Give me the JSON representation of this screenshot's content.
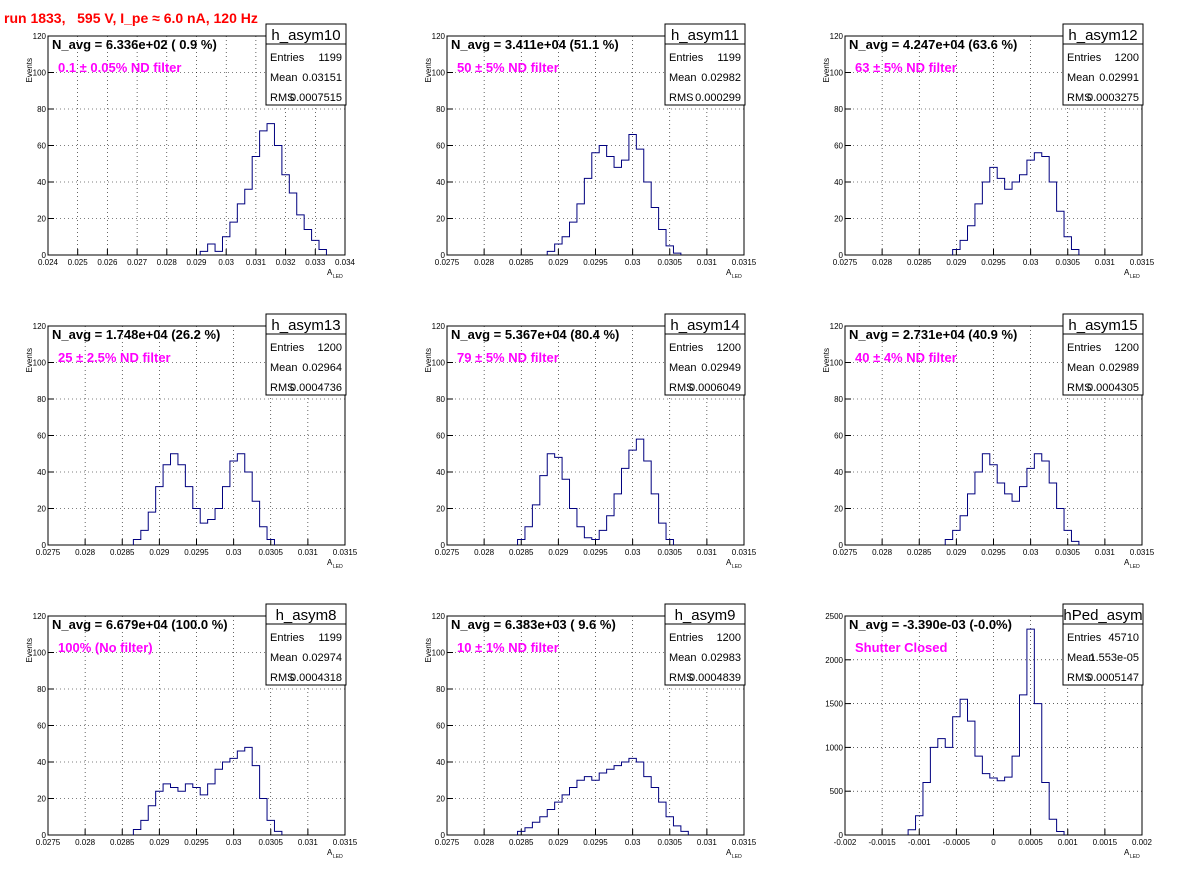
{
  "title": "run 1833,   595 V, I_pe ≈ 6.0 nA, 120 Hz",
  "chart_data": [
    {
      "type": "bar",
      "name": "h_asym10",
      "navg": "N_avg = 6.336e+02 ( 0.9 %)",
      "filter": "0.1 ± 0.05% ND filter",
      "stats": {
        "entries_label": "Entries",
        "entries": "1199",
        "mean_label": "Mean",
        "mean": "0.03151",
        "rms_label": "RMS",
        "rms": "0.0007515"
      },
      "xlabel": "A",
      "xlabel_sub": "LED",
      "ylabel": "Events",
      "xlim": [
        0.024,
        0.034
      ],
      "ylim": [
        0,
        120
      ],
      "xticks": [
        0.024,
        0.025,
        0.026,
        0.027,
        0.028,
        0.029,
        0.03,
        0.031,
        0.032,
        0.033,
        0.034
      ],
      "xtick_labels": [
        "0.024",
        "0.025",
        "0.026",
        "0.027",
        "0.028",
        "0.029",
        "0.03",
        "0.031",
        "0.032",
        "0.033",
        "0.034"
      ],
      "yticks": [
        0,
        20,
        40,
        60,
        80,
        100,
        120
      ],
      "bins": [
        [
          0.02925,
          2
        ],
        [
          0.0295,
          6
        ],
        [
          0.02975,
          2
        ],
        [
          0.03,
          10
        ],
        [
          0.03025,
          18
        ],
        [
          0.0305,
          28
        ],
        [
          0.03075,
          36
        ],
        [
          0.031,
          54
        ],
        [
          0.03125,
          68
        ],
        [
          0.0315,
          72
        ],
        [
          0.03175,
          60
        ],
        [
          0.032,
          44
        ],
        [
          0.03225,
          34
        ],
        [
          0.0325,
          22
        ],
        [
          0.03275,
          14
        ],
        [
          0.033,
          8
        ],
        [
          0.03325,
          3
        ]
      ]
    },
    {
      "type": "bar",
      "name": "h_asym11",
      "navg": "N_avg = 3.411e+04 (51.1 %)",
      "filter": "50 ± 5% ND filter",
      "stats": {
        "entries_label": "Entries",
        "entries": "1199",
        "mean_label": "Mean",
        "mean": "0.02982",
        "rms_label": "RMS",
        "rms": "0.000299"
      },
      "xlabel": "A",
      "xlabel_sub": "LED",
      "ylabel": "Events",
      "xlim": [
        0.0275,
        0.0315
      ],
      "ylim": [
        0,
        120
      ],
      "xticks": [
        0.0275,
        0.028,
        0.0285,
        0.029,
        0.0295,
        0.03,
        0.0305,
        0.031,
        0.0315
      ],
      "xtick_labels": [
        "0.0275",
        "0.028",
        "0.0285",
        "0.029",
        "0.0295",
        "0.03",
        "0.0305",
        "0.031",
        "0.0315"
      ],
      "yticks": [
        0,
        20,
        40,
        60,
        80,
        100,
        120
      ],
      "bins": [
        [
          0.0289,
          2
        ],
        [
          0.029,
          6
        ],
        [
          0.0291,
          10
        ],
        [
          0.0292,
          18
        ],
        [
          0.0293,
          28
        ],
        [
          0.0294,
          42
        ],
        [
          0.0295,
          56
        ],
        [
          0.0296,
          60
        ],
        [
          0.0297,
          54
        ],
        [
          0.0298,
          48
        ],
        [
          0.0299,
          52
        ],
        [
          0.03,
          66
        ],
        [
          0.0301,
          58
        ],
        [
          0.0302,
          40
        ],
        [
          0.0303,
          26
        ],
        [
          0.0304,
          14
        ],
        [
          0.0305,
          5
        ],
        [
          0.0306,
          1
        ]
      ]
    },
    {
      "type": "bar",
      "name": "h_asym12",
      "navg": "N_avg = 4.247e+04 (63.6 %)",
      "filter": "63 ± 5% ND filter",
      "stats": {
        "entries_label": "Entries",
        "entries": "1200",
        "mean_label": "Mean",
        "mean": "0.02991",
        "rms_label": "RMS",
        "rms": "0.0003275"
      },
      "xlabel": "A",
      "xlabel_sub": "LED",
      "ylabel": "Events",
      "xlim": [
        0.0275,
        0.0315
      ],
      "ylim": [
        0,
        120
      ],
      "xticks": [
        0.0275,
        0.028,
        0.0285,
        0.029,
        0.0295,
        0.03,
        0.0305,
        0.031,
        0.0315
      ],
      "xtick_labels": [
        "0.0275",
        "0.028",
        "0.0285",
        "0.029",
        "0.0295",
        "0.03",
        "0.0305",
        "0.031",
        "0.0315"
      ],
      "yticks": [
        0,
        20,
        40,
        60,
        80,
        100,
        120
      ],
      "bins": [
        [
          0.029,
          3
        ],
        [
          0.0291,
          8
        ],
        [
          0.0292,
          16
        ],
        [
          0.0293,
          28
        ],
        [
          0.0294,
          40
        ],
        [
          0.0295,
          48
        ],
        [
          0.0296,
          42
        ],
        [
          0.0297,
          36
        ],
        [
          0.0298,
          40
        ],
        [
          0.0299,
          44
        ],
        [
          0.03,
          52
        ],
        [
          0.0301,
          56
        ],
        [
          0.0302,
          54
        ],
        [
          0.0303,
          40
        ],
        [
          0.0304,
          24
        ],
        [
          0.0305,
          10
        ],
        [
          0.0306,
          3
        ]
      ]
    },
    {
      "type": "bar",
      "name": "h_asym13",
      "navg": "N_avg = 1.748e+04 (26.2 %)",
      "filter": "25 ± 2.5% ND filter",
      "stats": {
        "entries_label": "Entries",
        "entries": "1200",
        "mean_label": "Mean",
        "mean": "0.02964",
        "rms_label": "RMS",
        "rms": "0.0004736"
      },
      "xlabel": "A",
      "xlabel_sub": "LED",
      "ylabel": "Events",
      "xlim": [
        0.0275,
        0.0315
      ],
      "ylim": [
        0,
        120
      ],
      "xticks": [
        0.0275,
        0.028,
        0.0285,
        0.029,
        0.0295,
        0.03,
        0.0305,
        0.031,
        0.0315
      ],
      "xtick_labels": [
        "0.0275",
        "0.028",
        "0.0285",
        "0.029",
        "0.0295",
        "0.03",
        "0.0305",
        "0.031",
        "0.0315"
      ],
      "yticks": [
        0,
        20,
        40,
        60,
        80,
        100,
        120
      ],
      "bins": [
        [
          0.0287,
          3
        ],
        [
          0.0288,
          8
        ],
        [
          0.0289,
          18
        ],
        [
          0.029,
          32
        ],
        [
          0.0291,
          44
        ],
        [
          0.0292,
          50
        ],
        [
          0.0293,
          44
        ],
        [
          0.0294,
          32
        ],
        [
          0.0295,
          20
        ],
        [
          0.0296,
          12
        ],
        [
          0.0297,
          14
        ],
        [
          0.0298,
          20
        ],
        [
          0.0299,
          32
        ],
        [
          0.03,
          46
        ],
        [
          0.0301,
          50
        ],
        [
          0.0302,
          40
        ],
        [
          0.0303,
          24
        ],
        [
          0.0304,
          10
        ],
        [
          0.0305,
          3
        ]
      ]
    },
    {
      "type": "bar",
      "name": "h_asym14",
      "navg": "N_avg = 5.367e+04 (80.4 %)",
      "filter": "79 ± 5% ND filter",
      "stats": {
        "entries_label": "Entries",
        "entries": "1200",
        "mean_label": "Mean",
        "mean": "0.02949",
        "rms_label": "RMS",
        "rms": "0.0006049"
      },
      "xlabel": "A",
      "xlabel_sub": "LED",
      "ylabel": "Events",
      "xlim": [
        0.0275,
        0.0315
      ],
      "ylim": [
        0,
        120
      ],
      "xticks": [
        0.0275,
        0.028,
        0.0285,
        0.029,
        0.0295,
        0.03,
        0.0305,
        0.031,
        0.0315
      ],
      "xtick_labels": [
        "0.0275",
        "0.028",
        "0.0285",
        "0.029",
        "0.0295",
        "0.03",
        "0.0305",
        "0.031",
        "0.0315"
      ],
      "yticks": [
        0,
        20,
        40,
        60,
        80,
        100,
        120
      ],
      "bins": [
        [
          0.0285,
          3
        ],
        [
          0.0286,
          10
        ],
        [
          0.0287,
          22
        ],
        [
          0.0288,
          38
        ],
        [
          0.0289,
          50
        ],
        [
          0.029,
          48
        ],
        [
          0.0291,
          36
        ],
        [
          0.0292,
          20
        ],
        [
          0.0293,
          10
        ],
        [
          0.0294,
          4
        ],
        [
          0.0295,
          3
        ],
        [
          0.0296,
          8
        ],
        [
          0.0297,
          16
        ],
        [
          0.0298,
          28
        ],
        [
          0.0299,
          42
        ],
        [
          0.03,
          52
        ],
        [
          0.0301,
          58
        ],
        [
          0.0302,
          46
        ],
        [
          0.0303,
          28
        ],
        [
          0.0304,
          12
        ],
        [
          0.0305,
          3
        ]
      ]
    },
    {
      "type": "bar",
      "name": "h_asym15",
      "navg": "N_avg = 2.731e+04 (40.9 %)",
      "filter": "40 ± 4% ND filter",
      "stats": {
        "entries_label": "Entries",
        "entries": "1200",
        "mean_label": "Mean",
        "mean": "0.02989",
        "rms_label": "RMS",
        "rms": "0.0004305"
      },
      "xlabel": "A",
      "xlabel_sub": "LED",
      "ylabel": "Events",
      "xlim": [
        0.0275,
        0.0315
      ],
      "ylim": [
        0,
        120
      ],
      "xticks": [
        0.0275,
        0.028,
        0.0285,
        0.029,
        0.0295,
        0.03,
        0.0305,
        0.031,
        0.0315
      ],
      "xtick_labels": [
        "0.0275",
        "0.028",
        "0.0285",
        "0.029",
        "0.0295",
        "0.03",
        "0.0305",
        "0.031",
        "0.0315"
      ],
      "yticks": [
        0,
        20,
        40,
        60,
        80,
        100,
        120
      ],
      "bins": [
        [
          0.0289,
          3
        ],
        [
          0.029,
          8
        ],
        [
          0.0291,
          16
        ],
        [
          0.0292,
          28
        ],
        [
          0.0293,
          40
        ],
        [
          0.0294,
          50
        ],
        [
          0.0295,
          44
        ],
        [
          0.0296,
          34
        ],
        [
          0.0297,
          28
        ],
        [
          0.0298,
          24
        ],
        [
          0.0299,
          32
        ],
        [
          0.03,
          42
        ],
        [
          0.0301,
          50
        ],
        [
          0.0302,
          46
        ],
        [
          0.0303,
          34
        ],
        [
          0.0304,
          20
        ],
        [
          0.0305,
          8
        ],
        [
          0.0306,
          2
        ]
      ]
    },
    {
      "type": "bar",
      "name": "h_asym8",
      "navg": "N_avg = 6.679e+04 (100.0 %)",
      "filter": "100% (No filter)",
      "stats": {
        "entries_label": "Entries",
        "entries": "1199",
        "mean_label": "Mean",
        "mean": "0.02974",
        "rms_label": "RMS",
        "rms": "0.0004318"
      },
      "xlabel": "A",
      "xlabel_sub": "LED",
      "ylabel": "Events",
      "xlim": [
        0.0275,
        0.0315
      ],
      "ylim": [
        0,
        120
      ],
      "xticks": [
        0.0275,
        0.028,
        0.0285,
        0.029,
        0.0295,
        0.03,
        0.0305,
        0.031,
        0.0315
      ],
      "xtick_labels": [
        "0.0275",
        "0.028",
        "0.0285",
        "0.029",
        "0.0295",
        "0.03",
        "0.0305",
        "0.031",
        "0.0315"
      ],
      "yticks": [
        0,
        20,
        40,
        60,
        80,
        100,
        120
      ],
      "bins": [
        [
          0.0287,
          3
        ],
        [
          0.0288,
          8
        ],
        [
          0.0289,
          16
        ],
        [
          0.029,
          24
        ],
        [
          0.0291,
          28
        ],
        [
          0.0292,
          26
        ],
        [
          0.0293,
          24
        ],
        [
          0.0294,
          28
        ],
        [
          0.0295,
          26
        ],
        [
          0.0296,
          22
        ],
        [
          0.0297,
          28
        ],
        [
          0.0298,
          36
        ],
        [
          0.0299,
          40
        ],
        [
          0.03,
          42
        ],
        [
          0.0301,
          46
        ],
        [
          0.0302,
          48
        ],
        [
          0.0303,
          38
        ],
        [
          0.0304,
          20
        ],
        [
          0.0305,
          8
        ],
        [
          0.0306,
          2
        ]
      ]
    },
    {
      "type": "bar",
      "name": "h_asym9",
      "navg": "N_avg = 6.383e+03 ( 9.6 %)",
      "filter": "10 ± 1% ND filter",
      "stats": {
        "entries_label": "Entries",
        "entries": "1200",
        "mean_label": "Mean",
        "mean": "0.02983",
        "rms_label": "RMS",
        "rms": "0.0004839"
      },
      "xlabel": "A",
      "xlabel_sub": "LED",
      "ylabel": "Events",
      "xlim": [
        0.0275,
        0.0315
      ],
      "ylim": [
        0,
        120
      ],
      "xticks": [
        0.0275,
        0.028,
        0.0285,
        0.029,
        0.0295,
        0.03,
        0.0305,
        0.031,
        0.0315
      ],
      "xtick_labels": [
        "0.0275",
        "0.028",
        "0.0285",
        "0.029",
        "0.0295",
        "0.03",
        "0.0305",
        "0.031",
        "0.0315"
      ],
      "yticks": [
        0,
        20,
        40,
        60,
        80,
        100,
        120
      ],
      "bins": [
        [
          0.0285,
          2
        ],
        [
          0.0286,
          4
        ],
        [
          0.0287,
          7
        ],
        [
          0.0288,
          10
        ],
        [
          0.0289,
          14
        ],
        [
          0.029,
          18
        ],
        [
          0.0291,
          22
        ],
        [
          0.0292,
          26
        ],
        [
          0.0293,
          30
        ],
        [
          0.0294,
          32
        ],
        [
          0.0295,
          30
        ],
        [
          0.0296,
          34
        ],
        [
          0.0297,
          36
        ],
        [
          0.0298,
          38
        ],
        [
          0.0299,
          40
        ],
        [
          0.03,
          42
        ],
        [
          0.0301,
          40
        ],
        [
          0.0302,
          32
        ],
        [
          0.0303,
          26
        ],
        [
          0.0304,
          18
        ],
        [
          0.0305,
          10
        ],
        [
          0.0306,
          5
        ],
        [
          0.0307,
          2
        ]
      ]
    },
    {
      "type": "bar",
      "name": "hPed_asym",
      "navg": "N_avg = -3.390e-03 (-0.0%)",
      "filter": "Shutter Closed",
      "stats": {
        "entries_label": "Entries",
        "entries": "45710",
        "mean_label": "Mean",
        "mean": "1.553e-05",
        "rms_label": "RMS",
        "rms": "0.0005147"
      },
      "xlabel": "A",
      "xlabel_sub": "LED",
      "ylabel": "",
      "xlim": [
        -0.002,
        0.002
      ],
      "ylim": [
        0,
        2500
      ],
      "xticks": [
        -0.002,
        -0.0015,
        -0.001,
        -0.0005,
        0,
        0.0005,
        0.001,
        0.0015,
        0.002
      ],
      "xtick_labels": [
        "-0.002",
        "-0.0015",
        "-0.001",
        "-0.0005",
        "0",
        "0.0005",
        "0.001",
        "0.0015",
        "0.002"
      ],
      "yticks": [
        0,
        500,
        1000,
        1500,
        2000,
        2500
      ],
      "bins": [
        [
          -0.0011,
          60
        ],
        [
          -0.001,
          220
        ],
        [
          -0.0009,
          600
        ],
        [
          -0.0008,
          1000
        ],
        [
          -0.0007,
          1100
        ],
        [
          -0.0006,
          1000
        ],
        [
          -0.0005,
          1350
        ],
        [
          -0.0004,
          1550
        ],
        [
          -0.0003,
          1300
        ],
        [
          -0.0002,
          900
        ],
        [
          -0.0001,
          700
        ],
        [
          0,
          650
        ],
        [
          0.0001,
          620
        ],
        [
          0.0002,
          660
        ],
        [
          0.0003,
          900
        ],
        [
          0.0004,
          1600
        ],
        [
          0.0005,
          2350
        ],
        [
          0.0006,
          1500
        ],
        [
          0.0007,
          600
        ],
        [
          0.0008,
          180
        ],
        [
          0.0009,
          40
        ]
      ]
    }
  ]
}
